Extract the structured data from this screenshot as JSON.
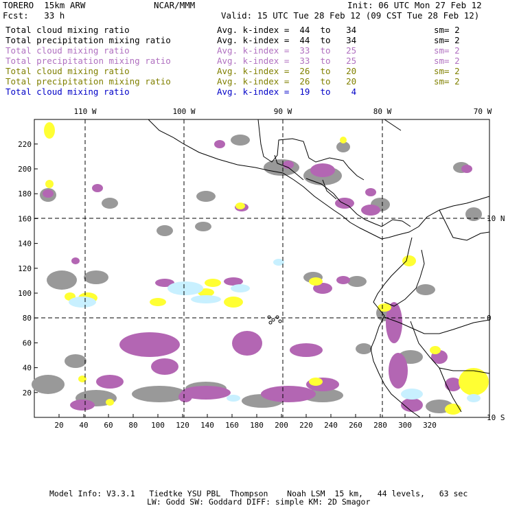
{
  "header": {
    "model": "TORERO  15km ARW",
    "center": "NCAR/MMM",
    "init": "Init: 06 UTC Mon 27 Feb 12",
    "fcst": "Fcst:   33 h",
    "valid": "Valid: 15 UTC Tue 28 Feb 12 (09 CST Tue 28 Feb 12)"
  },
  "legend": [
    {
      "field": "Total cloud mixing ratio",
      "range": "Avg. k-index =  44  to   34",
      "sm": "sm= 2",
      "color": "#000000"
    },
    {
      "field": "Total precipitation mixing ratio",
      "range": "Avg. k-index =  44  to   34",
      "sm": "sm= 2",
      "color": "#000000"
    },
    {
      "field": "Total cloud mixing ratio",
      "range": "Avg. k-index =  33  to   25",
      "sm": "sm= 2",
      "color": "#b070c0"
    },
    {
      "field": "Total precipitation mixing ratio",
      "range": "Avg. k-index =  33  to   25",
      "sm": "sm= 2",
      "color": "#b070c0"
    },
    {
      "field": "Total cloud mixing ratio",
      "range": "Avg. k-index =  26  to   20",
      "sm": "sm= 2",
      "color": "#808000"
    },
    {
      "field": "Total precipitation mixing ratio",
      "range": "Avg. k-index =  26  to   20",
      "sm": "sm= 2",
      "color": "#808000"
    },
    {
      "field": "Total cloud mixing ratio",
      "range": "Avg. k-index =  19  to    4",
      "sm": "",
      "color": "#0000c8"
    }
  ],
  "axes": {
    "lon_labels": [
      "110 W",
      "100 W",
      "90 W",
      "80 W",
      "70 W"
    ],
    "lat_labels": [
      "10 N",
      "0",
      "10 S"
    ],
    "x_ticks": [
      "20",
      "40",
      "60",
      "80",
      "100",
      "120",
      "140",
      "160",
      "180",
      "200",
      "220",
      "240",
      "260",
      "280",
      "300",
      "320"
    ],
    "y_ticks": [
      "20",
      "40",
      "60",
      "80",
      "100",
      "120",
      "140",
      "160",
      "180",
      "200",
      "220"
    ]
  },
  "footer": {
    "line1": "Model Info: V3.3.1   Tiedtke YSU PBL  Thompson    Noah LSM  15 km,   44 levels,   63 sec",
    "line2": "LW: Godd SW: Goddard DIFF: simple KM: 2D Smagor"
  },
  "colors": {
    "level1": "#999999",
    "level2": "#b366b3",
    "level3": "#ffff33",
    "level4": "#c8f0ff"
  }
}
